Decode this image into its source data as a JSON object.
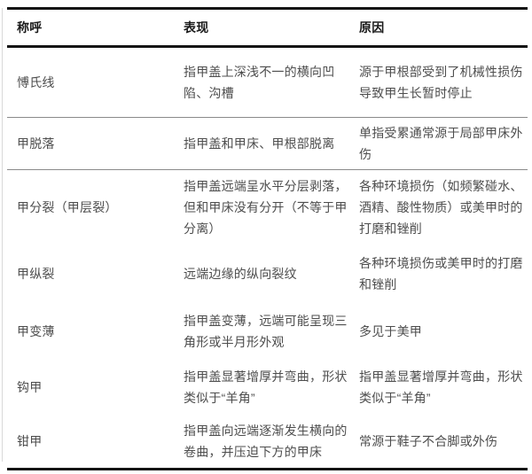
{
  "colors": {
    "background": "#ffffff",
    "heavy_rule": "#141414",
    "row_separator_rule": "#8a8a8a",
    "left_edge_rule": "#d9d9d9",
    "header_text": "#1a1a1a",
    "body_text": "#4d4d4d"
  },
  "table": {
    "header": {
      "name": "称呼",
      "manifestation": "表现",
      "cause": "原因"
    },
    "rows": [
      {
        "name": "愽氏线",
        "manifestation": "指甲盖上深浅不一的横向凹陷、沟槽",
        "cause": "源于甲根部受到了机械性损伤导致甲生长暂时停止"
      },
      {
        "name": "甲脱落",
        "manifestation": "指甲盖和甲床、甲根部脱离",
        "cause": "单指受累通常源于局部甲床外伤"
      },
      {
        "name": "甲分裂（甲层裂）",
        "manifestation": "指甲盖远端呈水平分层剥落，但和甲床没有分开（不等于甲分离）",
        "cause": "各种环境损伤（如频繁碰水、酒精、酸性物质）或美甲时的打磨和锉削"
      },
      {
        "name": "甲纵裂",
        "manifestation": "远端边缘的纵向裂纹",
        "cause": "各种环境损伤或美甲时的打磨和锉削"
      },
      {
        "name": "甲变薄",
        "manifestation": "指甲盖变薄，远端可能呈现三角形或半月形外观",
        "cause": "多见于美甲"
      },
      {
        "name": "钩甲",
        "manifestation": "指甲盖显著增厚并弯曲，形状类似于“羊角”",
        "cause": "指甲盖显著增厚并弯曲，形状类似于“羊角”"
      },
      {
        "name": "钳甲",
        "manifestation": "指甲盖向远端逐渐发生横向的卷曲，并压迫下方的甲床",
        "cause": "常源于鞋子不合脚或外伤"
      }
    ]
  }
}
